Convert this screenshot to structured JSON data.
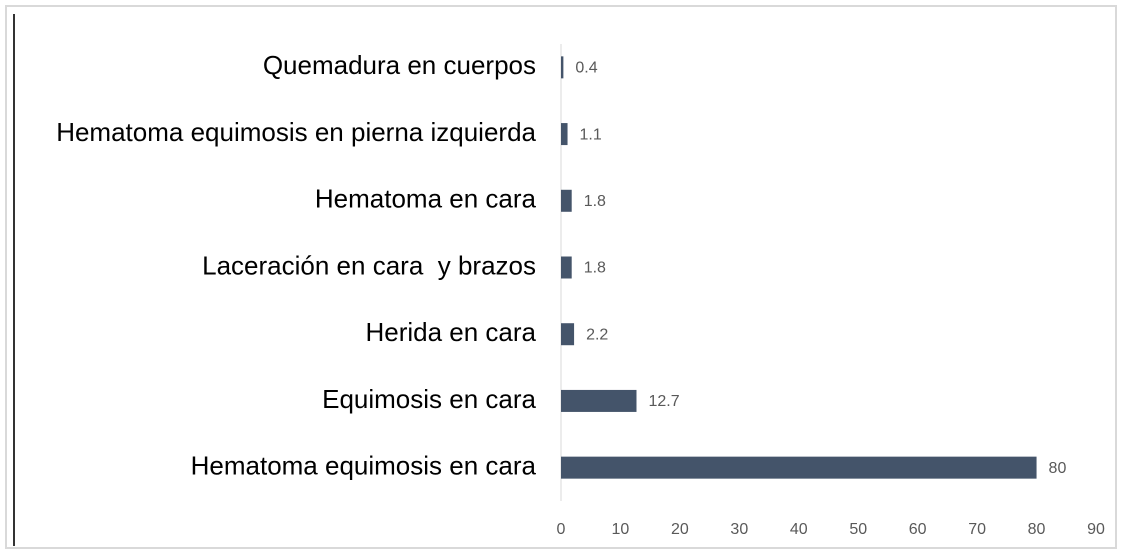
{
  "chart_data": {
    "type": "bar",
    "orientation": "horizontal",
    "categories": [
      "Quemadura en cuerpos",
      "Hematoma equimosis en pierna izquierda",
      "Hematoma en cara",
      "Laceración en cara  y brazos",
      "Herida en cara",
      "Equimosis en cara",
      "Hematoma equimosis en cara"
    ],
    "values": [
      0.4,
      1.1,
      1.8,
      1.8,
      2.2,
      12.7,
      80
    ],
    "color": "#44546a",
    "xlim": [
      0,
      90
    ],
    "xticks": [
      0,
      10,
      20,
      30,
      40,
      50,
      60,
      70,
      80,
      90
    ],
    "grid": false
  }
}
